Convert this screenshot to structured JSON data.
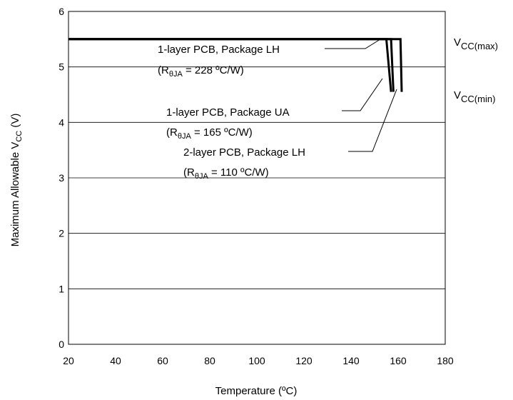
{
  "chart_data": {
    "type": "line",
    "xlabel": "Temperature (ºC)",
    "ylabel": {
      "main": "Maximum Allowable V",
      "sub": "CC",
      "unit": " (V)"
    },
    "xlim": [
      20,
      180
    ],
    "ylim": [
      0,
      6
    ],
    "x_ticks": [
      "20",
      "40",
      "60",
      "80",
      "100",
      "120",
      "140",
      "160",
      "180"
    ],
    "y_ticks": [
      "0",
      "1",
      "2",
      "3",
      "4",
      "5",
      "6"
    ],
    "grid": "horizontal",
    "series": [
      {
        "label": "1-layer PCB, Package LH",
        "theta_sub": "θJA",
        "theta_value": " = 228 ºC/W)",
        "points": [
          [
            20,
            5.5
          ],
          [
            155,
            5.5
          ],
          [
            157,
            4.55
          ]
        ]
      },
      {
        "label": "1-layer PCB, Package UA",
        "theta_sub": "θJA",
        "theta_value": " = 165 ºC/W)",
        "points": [
          [
            20,
            5.5
          ],
          [
            157,
            5.5
          ],
          [
            158,
            4.55
          ]
        ]
      },
      {
        "label": "2-layer PCB, Package LH",
        "theta_sub": "θJA",
        "theta_value": " = 110 ºC/W)",
        "points": [
          [
            20,
            5.5
          ],
          [
            161,
            5.5
          ],
          [
            161.5,
            4.55
          ]
        ]
      }
    ],
    "reference_labels": [
      {
        "main": "V",
        "sub": "CC(max)"
      },
      {
        "main": "V",
        "sub": "CC(min)"
      }
    ]
  }
}
